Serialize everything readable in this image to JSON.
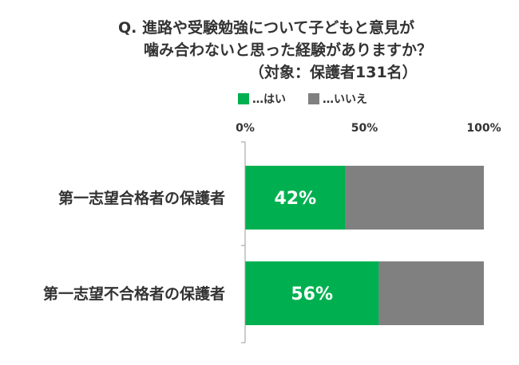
{
  "title": {
    "line1": "Q. 進路や受験勉強について子どもと意見が",
    "line2": "噛み合わないと思った経験がありますか？",
    "line3": "（対象：保護者131名）"
  },
  "legend": {
    "yes": "…はい",
    "no": "…いいえ"
  },
  "colors": {
    "yes": "#00b050",
    "no": "#808080"
  },
  "chart_data": {
    "type": "bar",
    "orientation": "horizontal",
    "stacked": true,
    "categories": [
      "第一志望合格者の保護者",
      "第一志望不合格者の保護者"
    ],
    "series": [
      {
        "name": "…はい",
        "values": [
          42,
          56
        ]
      },
      {
        "name": "…いいえ",
        "values": [
          58,
          44
        ]
      }
    ],
    "data_labels": [
      "42%",
      "56%"
    ],
    "x_ticks": [
      "0%",
      "50%",
      "100%"
    ],
    "xlim": [
      0,
      100
    ],
    "legend_position": "top",
    "grid": false
  }
}
